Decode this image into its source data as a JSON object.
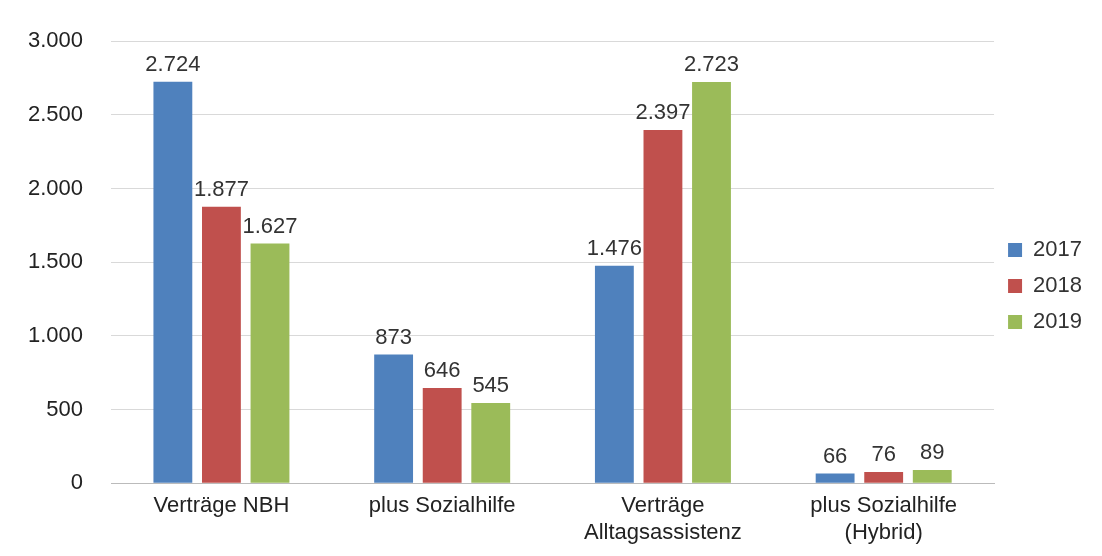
{
  "chart_data": {
    "type": "bar",
    "categories": [
      "Verträge NBH",
      "plus Sozialhilfe",
      "Verträge Alltagsassistenz",
      "plus Sozialhilfe (Hybrid)"
    ],
    "series": [
      {
        "name": "2017",
        "color": "#4f81bd",
        "values": [
          2724,
          873,
          1476,
          66
        ],
        "value_labels": [
          "2.724",
          "873",
          "1.476",
          "66"
        ]
      },
      {
        "name": "2018",
        "color": "#c0504d",
        "values": [
          1877,
          646,
          2397,
          76
        ],
        "value_labels": [
          "1.877",
          "646",
          "2.397",
          "76"
        ]
      },
      {
        "name": "2019",
        "color": "#9bbb59",
        "values": [
          1627,
          545,
          2723,
          89
        ],
        "value_labels": [
          "1.627",
          "545",
          "2.723",
          "89"
        ]
      }
    ],
    "ylim": [
      0,
      3000
    ],
    "yticks": [
      {
        "value": 0,
        "label": "0"
      },
      {
        "value": 500,
        "label": "500"
      },
      {
        "value": 1000,
        "label": "1.000"
      },
      {
        "value": 1500,
        "label": "1.500"
      },
      {
        "value": 2000,
        "label": "2.000"
      },
      {
        "value": 2500,
        "label": "2.500"
      },
      {
        "value": 3000,
        "label": "3.000"
      }
    ],
    "grid": "y",
    "legend": "right"
  }
}
